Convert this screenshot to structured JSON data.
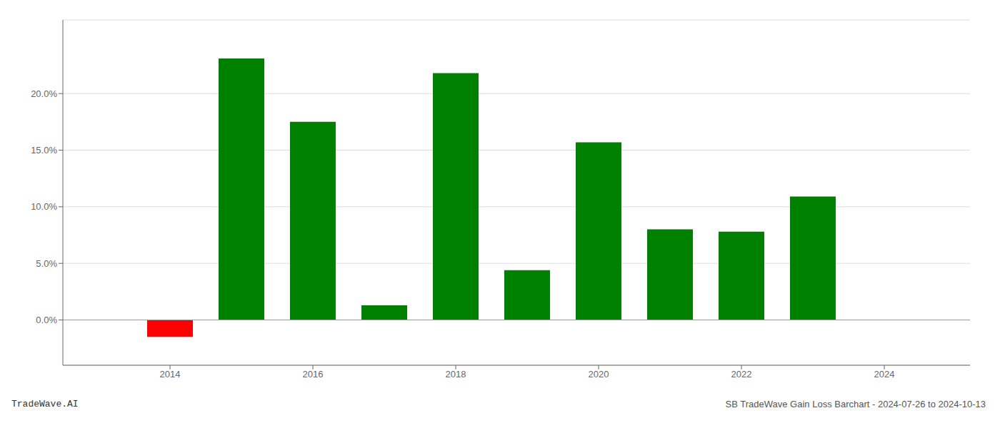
{
  "chart_data": {
    "type": "bar",
    "x": [
      2014,
      2015,
      2016,
      2017,
      2018,
      2019,
      2020,
      2021,
      2022,
      2023
    ],
    "values": [
      -0.015,
      0.231,
      0.175,
      0.013,
      0.218,
      0.044,
      0.157,
      0.08,
      0.078,
      0.109
    ],
    "colors": [
      "#ff0000",
      "#008000",
      "#008000",
      "#008000",
      "#008000",
      "#008000",
      "#008000",
      "#008000",
      "#008000",
      "#008000"
    ],
    "xlim": [
      2012.5,
      2025.2
    ],
    "xticks": [
      2014,
      2016,
      2018,
      2020,
      2022,
      2024
    ],
    "ylim": [
      -0.04,
      0.265
    ],
    "yticks": [
      {
        "value": 0.0,
        "label": "0.0%"
      },
      {
        "value": 0.05,
        "label": "5.0%"
      },
      {
        "value": 0.1,
        "label": "10.0%"
      },
      {
        "value": 0.15,
        "label": "15.0%"
      },
      {
        "value": 0.2,
        "label": "20.0%"
      }
    ],
    "grid": true,
    "annotations": [
      "TradeWave.AI",
      "SB TradeWave Gain Loss Barchart - 2024-07-26 to 2024-10-13"
    ]
  }
}
